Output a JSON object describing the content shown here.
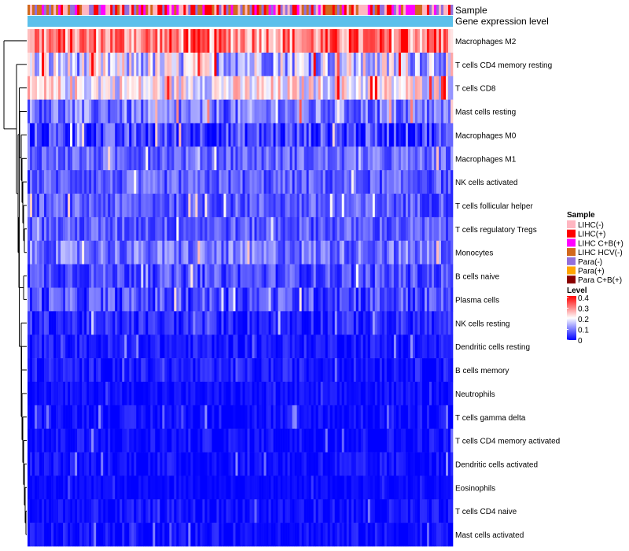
{
  "chart_data": {
    "type": "heatmap",
    "title": "",
    "annotation_tracks": [
      "Sample",
      "Gene expression level"
    ],
    "rows": [
      {
        "label": "Macrophages M2",
        "mean": 0.3,
        "spread": 0.1
      },
      {
        "label": "T cells CD4 memory resting",
        "mean": 0.16,
        "spread": 0.11
      },
      {
        "label": "T cells CD8",
        "mean": 0.2,
        "spread": 0.09
      },
      {
        "label": "Mast cells resting",
        "mean": 0.09,
        "spread": 0.07
      },
      {
        "label": "Macrophages M0",
        "mean": 0.05,
        "spread": 0.07
      },
      {
        "label": "Macrophages M1",
        "mean": 0.08,
        "spread": 0.05
      },
      {
        "label": "NK cells activated",
        "mean": 0.07,
        "spread": 0.05
      },
      {
        "label": "T cells follicular helper",
        "mean": 0.07,
        "spread": 0.05
      },
      {
        "label": "T cells regulatory  Tregs",
        "mean": 0.07,
        "spread": 0.05
      },
      {
        "label": "Monocytes",
        "mean": 0.09,
        "spread": 0.06
      },
      {
        "label": "B cells naive",
        "mean": 0.06,
        "spread": 0.05
      },
      {
        "label": "Plasma cells",
        "mean": 0.06,
        "spread": 0.06
      },
      {
        "label": "NK cells resting",
        "mean": 0.03,
        "spread": 0.04
      },
      {
        "label": "Dendritic cells resting",
        "mean": 0.02,
        "spread": 0.03
      },
      {
        "label": "B cells memory",
        "mean": 0.02,
        "spread": 0.03
      },
      {
        "label": "Neutrophils",
        "mean": 0.01,
        "spread": 0.02
      },
      {
        "label": "T cells gamma delta",
        "mean": 0.01,
        "spread": 0.03
      },
      {
        "label": "T cells CD4 memory activated",
        "mean": 0.01,
        "spread": 0.03
      },
      {
        "label": "Dendritic cells activated",
        "mean": 0.01,
        "spread": 0.03
      },
      {
        "label": "Eosinophils",
        "mean": 0.005,
        "spread": 0.015
      },
      {
        "label": "T cells CD4 naive",
        "mean": 0.01,
        "spread": 0.03
      },
      {
        "label": "Mast cells activated",
        "mean": 0.01,
        "spread": 0.03
      }
    ],
    "n_samples": 180,
    "sample_legend": {
      "title": "Sample",
      "items": [
        {
          "label": "LIHC(-)",
          "color": "#ffb6c1"
        },
        {
          "label": "LIHC(+)",
          "color": "#ff0000"
        },
        {
          "label": "LIHC C+B(+)",
          "color": "#ff00ff"
        },
        {
          "label": "LIHC HCV(-)",
          "color": "#d2691e"
        },
        {
          "label": "Para(-)",
          "color": "#9370db"
        },
        {
          "label": "Para(+)",
          "color": "#ffa500"
        },
        {
          "label": "Para C+B(+)",
          "color": "#8b0000"
        }
      ]
    },
    "level_legend": {
      "title": "Level",
      "ticks": [
        "0.4",
        "0.3",
        "0.2",
        "0.1",
        "0"
      ],
      "range": [
        0,
        0.4
      ],
      "colors": [
        "#0000ff",
        "#ffffff",
        "#ff0000"
      ]
    },
    "expression_track_color": "#5bc0eb",
    "sample_track_colors": [
      "#ff00ff",
      "#ffb6c1",
      "#ff0000",
      "#d2691e",
      "#9370db"
    ]
  }
}
